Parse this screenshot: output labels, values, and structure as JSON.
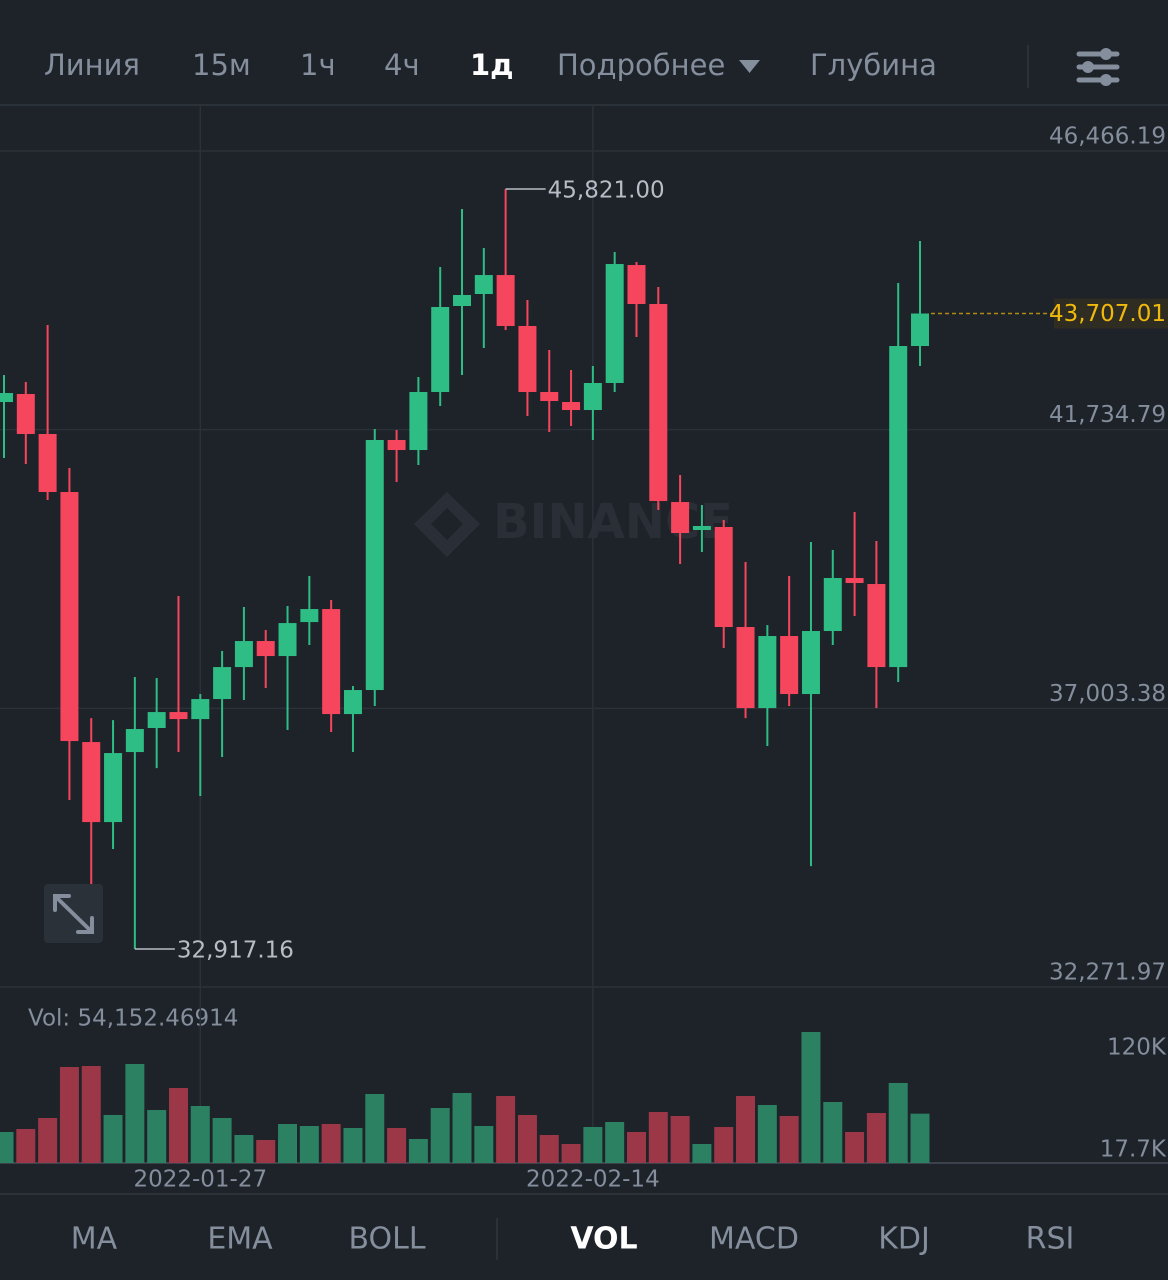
{
  "toolbar": {
    "tabs": [
      {
        "label": "Линия",
        "active": false
      },
      {
        "label": "15м",
        "active": false
      },
      {
        "label": "1ч",
        "active": false
      },
      {
        "label": "4ч",
        "active": false
      },
      {
        "label": "1д",
        "active": true
      },
      {
        "label": "Подробнее",
        "active": false
      },
      {
        "label": "Глубина",
        "active": false
      }
    ]
  },
  "indicators": [
    {
      "label": "MA",
      "active": false
    },
    {
      "label": "EMA",
      "active": false
    },
    {
      "label": "BOLL",
      "active": false
    },
    {
      "label": "VOL",
      "active": true
    },
    {
      "label": "MACD",
      "active": false
    },
    {
      "label": "KDJ",
      "active": false
    },
    {
      "label": "RSI",
      "active": false
    }
  ],
  "chart_data": {
    "type": "candlestick",
    "watermark": "BINANCE",
    "up_color": "#2ebd85",
    "down_color": "#f6465d",
    "categories": [
      null,
      null,
      null,
      null,
      null,
      null,
      null,
      null,
      null,
      "2022-01-27",
      null,
      null,
      null,
      null,
      null,
      null,
      null,
      null,
      null,
      null,
      null,
      null,
      null,
      null,
      null,
      null,
      null,
      "2022-02-14",
      null,
      null,
      null,
      null,
      null,
      null,
      null,
      null,
      null,
      null,
      null,
      null,
      null,
      null,
      null
    ],
    "open": [
      42204,
      42340,
      41661,
      40676,
      36431,
      35072,
      36261,
      36669,
      36940,
      36821,
      37161,
      37704,
      38146,
      37891,
      38468,
      38689,
      36906,
      37314,
      41559,
      41389,
      42374,
      43834,
      44038,
      44360,
      43495,
      42374,
      42204,
      42068,
      42527,
      44530,
      43868,
      40506,
      40031,
      40082,
      38384,
      37008,
      38231,
      37246,
      38316,
      39216,
      39114,
      37704,
      43155
    ],
    "high": [
      42662,
      42544,
      43511,
      41083,
      36838,
      36804,
      37535,
      37518,
      38910,
      37246,
      37976,
      38723,
      38333,
      38740,
      39250,
      38842,
      37382,
      41746,
      41729,
      42629,
      44496,
      45481,
      44819,
      45821.0,
      43936,
      43087,
      42747,
      42815,
      44751,
      44581,
      44157,
      40964,
      40455,
      40200,
      39487,
      38417,
      39250,
      39827,
      39691,
      40336,
      39844,
      44225,
      44938
    ],
    "low": [
      41253,
      41151,
      40540,
      35446,
      34020,
      34614,
      32917.16,
      35989,
      36261,
      35514,
      36176,
      37144,
      37348,
      36635,
      38078,
      36601,
      36261,
      37042,
      40846,
      41134,
      42136,
      42662,
      43121,
      43427,
      41966,
      41695,
      41797,
      41559,
      42374,
      43308,
      40370,
      39453,
      39657,
      38027,
      36838,
      36363,
      37042,
      34325,
      38078,
      38570,
      37008,
      37450,
      42815
    ],
    "close": [
      42357,
      41661,
      40676,
      36448,
      35072,
      36244,
      36652,
      36940,
      36821,
      37161,
      37704,
      38146,
      37891,
      38451,
      38689,
      36906,
      37314,
      41559,
      41389,
      42374,
      43817,
      44021,
      44360,
      43495,
      42374,
      42221,
      42068,
      42527,
      44547,
      43868,
      40523,
      39980,
      40099,
      38384,
      37008,
      38231,
      37246,
      38316,
      39216,
      39131,
      37704,
      43155,
      43707.01
    ],
    "ylim": [
      32271.97,
      47230
    ],
    "yticks": [
      {
        "value": 46466.19,
        "label": "46,466.19"
      },
      {
        "value": 41734.79,
        "label": "41,734.79"
      },
      {
        "value": 37003.38,
        "label": "37,003.38"
      },
      {
        "value": 32271.97,
        "label": "32,271.97"
      }
    ],
    "grid": true,
    "annotations": [
      {
        "value": 45821.0,
        "label": "45,821.00"
      },
      {
        "value": 32917.16,
        "label": "32,917.16"
      }
    ],
    "last_price": {
      "value": 43707.01,
      "label": "43,707.01",
      "color": "#f0b90b"
    },
    "volume": {
      "label": "Vol: 54,152.46914",
      "up_color": "#2b8161",
      "down_color": "#9c3748",
      "values": [
        35750,
        38760,
        49790,
        100940,
        101950,
        52800,
        103950,
        57810,
        79880,
        61830,
        49790,
        32740,
        27720,
        43770,
        41770,
        43770,
        39760,
        73860,
        39760,
        28730,
        59820,
        74870,
        41770,
        71860,
        52800,
        32740,
        23710,
        40760,
        45780,
        35750,
        55810,
        51800,
        23710,
        40760,
        71860,
        62830,
        51800,
        136050,
        65840,
        35750,
        54800,
        84900,
        54152.46914
      ],
      "ylim": [
        4660,
        138050
      ],
      "yticks": [
        {
          "value": 120000,
          "label": "120K"
        },
        {
          "value": 17700,
          "label": "17.7K"
        }
      ]
    }
  }
}
